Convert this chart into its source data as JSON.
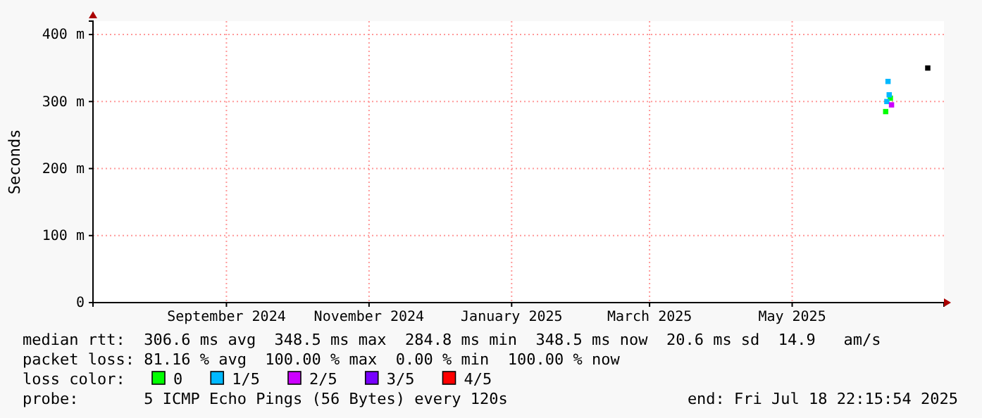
{
  "chart_data": {
    "type": "scatter",
    "ylabel": "Seconds",
    "xlim": [
      "2024-07-19T22:00",
      "2025-07-18T22:15"
    ],
    "xticks": [
      {
        "value": "2024-09-15",
        "label": "September 2024"
      },
      {
        "value": "2024-11-15",
        "label": "November 2024"
      },
      {
        "value": "2025-01-15",
        "label": "January 2025"
      },
      {
        "value": "2025-03-15",
        "label": "March 2025"
      },
      {
        "value": "2025-05-15",
        "label": "May 2025"
      }
    ],
    "ylim": [
      0,
      420
    ],
    "yticks": [
      {
        "value": 0,
        "label": "0"
      },
      {
        "value": 100,
        "label": "100 m"
      },
      {
        "value": 200,
        "label": "200 m"
      },
      {
        "value": 300,
        "label": "300 m"
      },
      {
        "value": 400,
        "label": "400 m"
      }
    ],
    "grid": true,
    "legend": "bottom",
    "legend_title": "loss color:",
    "marker": "square",
    "series": [
      {
        "name": "0",
        "color": "#00ff00",
        "x": [
          "2025-06-24T00:00",
          "2025-06-26T00:00"
        ],
        "values": [
          285,
          305
        ]
      },
      {
        "name": "1/5",
        "color": "#00b8ff",
        "x": [
          "2025-06-24T12:00",
          "2025-06-25T00:00",
          "2025-06-25T12:00"
        ],
        "values": [
          300,
          330,
          310
        ]
      },
      {
        "name": "2/5",
        "color": "#cc00ff",
        "x": [
          "2025-06-26T12:00"
        ],
        "values": [
          295
        ]
      },
      {
        "name": "3/5",
        "color": "#7700ff"
      },
      {
        "name": "4/5",
        "color": "#ff0000"
      },
      {
        "color": "#000000",
        "x": [
          "2025-07-12T00:00"
        ],
        "values": [
          350
        ]
      }
    ],
    "annotations": [
      "median rtt:  306.6 ms avg  348.5 ms max  284.8 ms min  348.5 ms now  20.6 ms sd  14.9   am/s",
      "packet loss: 81.16 % avg  100.00 % max  0.00 % min  100.00 % now",
      "probe:       5 ICMP Echo Pings (56 Bytes) every 120s",
      "end: Fri Jul 18 22:15:54 2025"
    ]
  }
}
